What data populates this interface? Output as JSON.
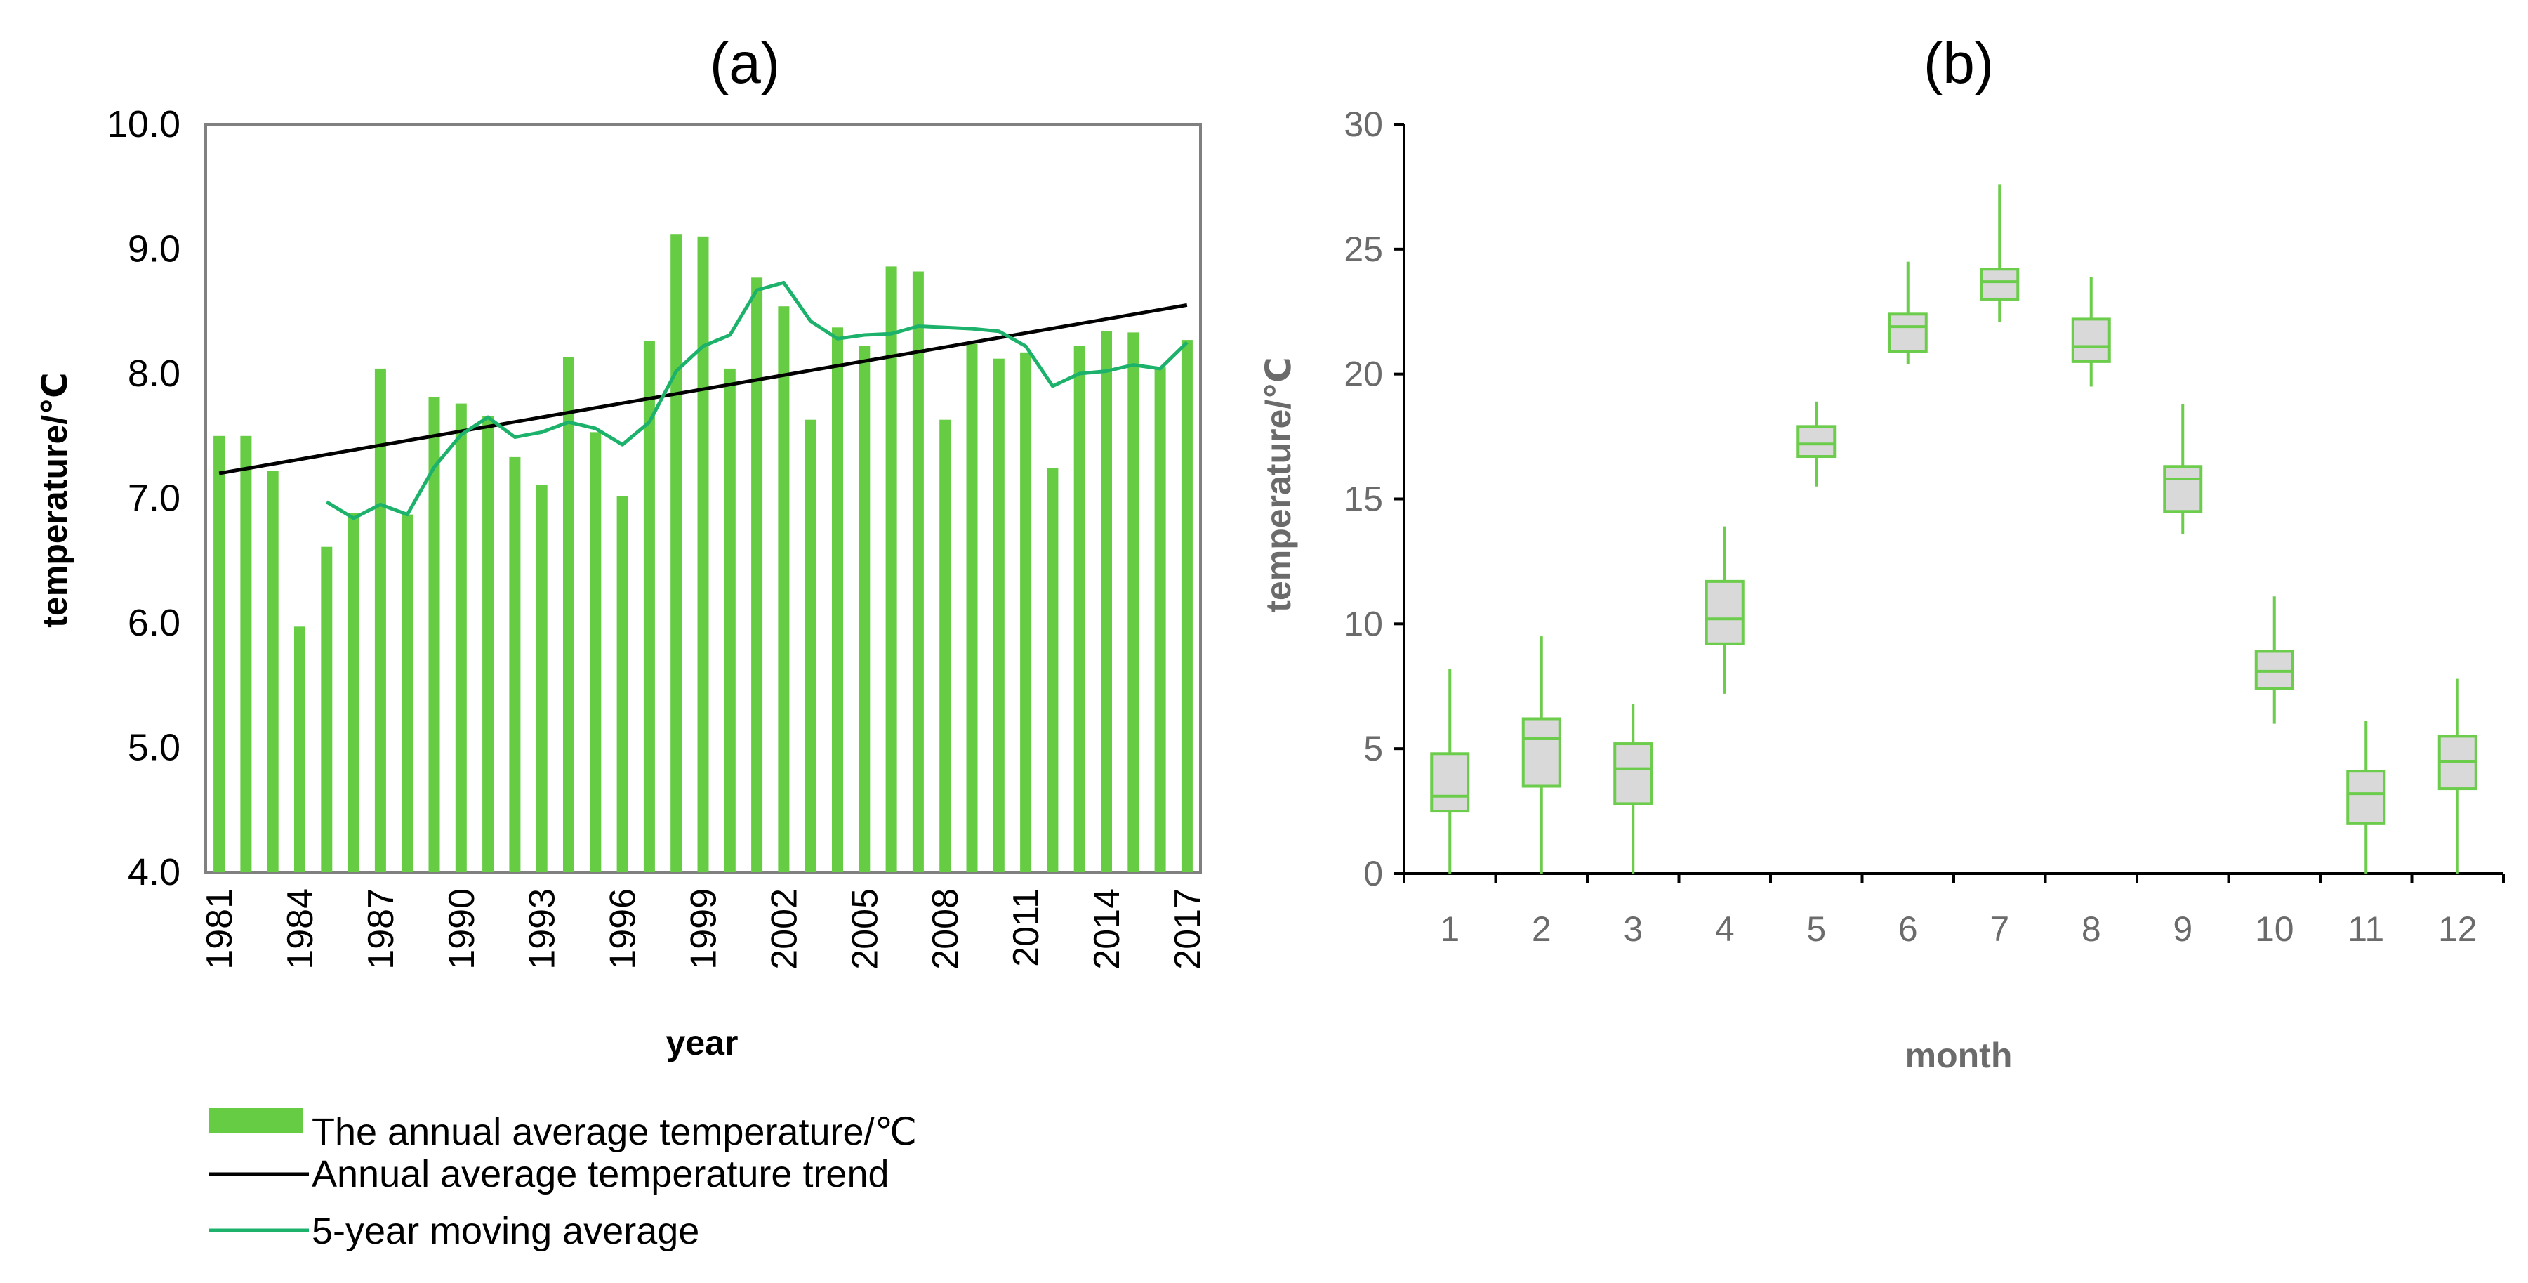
{
  "charts": [
    {
      "panel_label": "(a)",
      "y_axis_label": "temperature/℃",
      "x_axis_label": "year",
      "y_ticks": [
        "4.0",
        "5.0",
        "6.0",
        "7.0",
        "8.0",
        "9.0",
        "10.0"
      ],
      "x_ticks": [
        "1981",
        "1984",
        "1987",
        "1990",
        "1993",
        "1996",
        "1999",
        "2002",
        "2005",
        "2008",
        "2011",
        "2014",
        "2017"
      ],
      "legend": [
        {
          "label": "The annual average temperature/℃"
        },
        {
          "label": "Annual average temperature trend"
        },
        {
          "label": "5-year moving average"
        }
      ]
    },
    {
      "panel_label": "(b)",
      "y_axis_label": "temperature/℃",
      "x_axis_label": "month",
      "y_ticks": [
        "0",
        "5",
        "10",
        "15",
        "20",
        "25",
        "30"
      ],
      "x_ticks": [
        "1",
        "2",
        "3",
        "4",
        "5",
        "6",
        "7",
        "8",
        "9",
        "10",
        "11",
        "12"
      ]
    }
  ],
  "colors": {
    "bar": "#66cc44",
    "moving_average": "#1db26b",
    "trend": "#000000",
    "box_stroke": "#6ccc4c",
    "box_fill": "#d9d9d9",
    "axis_text_a": "#000000",
    "axis_text_b": "#6b6b6b",
    "frame_a": "#808080"
  },
  "chart_data": [
    {
      "type": "bar",
      "x": [
        1981,
        1982,
        1983,
        1984,
        1985,
        1986,
        1987,
        1988,
        1989,
        1990,
        1991,
        1992,
        1993,
        1994,
        1995,
        1996,
        1997,
        1998,
        1999,
        2000,
        2001,
        2002,
        2003,
        2004,
        2005,
        2006,
        2007,
        2008,
        2009,
        2010,
        2011,
        2012,
        2013,
        2014,
        2015,
        2016,
        2017
      ],
      "series": [
        {
          "name": "The annual average temperature/℃",
          "kind": "bar",
          "values": [
            7.5,
            7.5,
            7.22,
            5.97,
            6.61,
            6.88,
            8.04,
            6.87,
            7.81,
            7.76,
            7.66,
            7.33,
            7.11,
            8.13,
            7.53,
            7.02,
            8.26,
            9.12,
            9.1,
            8.04,
            8.77,
            8.54,
            7.63,
            8.37,
            8.22,
            8.86,
            8.82,
            7.63,
            8.24,
            8.12,
            8.17,
            7.24,
            8.22,
            8.34,
            8.33,
            8.05,
            8.27
          ]
        },
        {
          "name": "Annual average temperature trend",
          "kind": "line",
          "x": [
            1981,
            2017
          ],
          "values": [
            7.2,
            8.55
          ]
        },
        {
          "name": "5-year moving average",
          "kind": "line",
          "x": [
            1985,
            1986,
            1987,
            1988,
            1989,
            1990,
            1991,
            1992,
            1993,
            1994,
            1995,
            1996,
            1997,
            1998,
            1999,
            2000,
            2001,
            2002,
            2003,
            2004,
            2005,
            2006,
            2007,
            2008,
            2009,
            2010,
            2011,
            2012,
            2013,
            2014,
            2015,
            2016,
            2017
          ],
          "values": [
            6.97,
            6.84,
            6.95,
            6.87,
            7.25,
            7.51,
            7.65,
            7.49,
            7.53,
            7.61,
            7.56,
            7.43,
            7.61,
            8.02,
            8.22,
            8.31,
            8.67,
            8.73,
            8.42,
            8.28,
            8.31,
            8.32,
            8.38,
            8.37,
            8.36,
            8.34,
            8.22,
            7.9,
            8.0,
            8.02,
            8.07,
            8.04,
            8.25
          ]
        }
      ],
      "ylim": [
        4.0,
        10.0
      ],
      "xlim": [
        1981,
        2017
      ],
      "grid": false,
      "legend_position": "bottom-left"
    },
    {
      "type": "box",
      "categories": [
        "1",
        "2",
        "3",
        "4",
        "5",
        "6",
        "7",
        "8",
        "9",
        "10",
        "11",
        "12"
      ],
      "series": [
        {
          "min": [
            0,
            0,
            0,
            7.2,
            15.5,
            20.4,
            22.1,
            19.5,
            13.6,
            6.0,
            0,
            0
          ],
          "q1": [
            2.5,
            3.5,
            2.8,
            9.2,
            16.7,
            20.9,
            23.0,
            20.5,
            14.5,
            7.4,
            2.0,
            3.4
          ],
          "median": [
            3.1,
            5.4,
            4.2,
            10.2,
            17.2,
            21.9,
            23.7,
            21.1,
            15.8,
            8.1,
            3.2,
            4.5
          ],
          "q3": [
            4.8,
            6.2,
            5.2,
            11.7,
            17.9,
            22.4,
            24.2,
            22.2,
            16.3,
            8.9,
            4.1,
            5.5
          ],
          "max": [
            8.2,
            9.5,
            6.8,
            13.9,
            18.9,
            24.5,
            27.6,
            23.9,
            18.8,
            11.1,
            6.1,
            7.8
          ]
        }
      ],
      "ylim": [
        0,
        30
      ],
      "grid": false
    }
  ]
}
